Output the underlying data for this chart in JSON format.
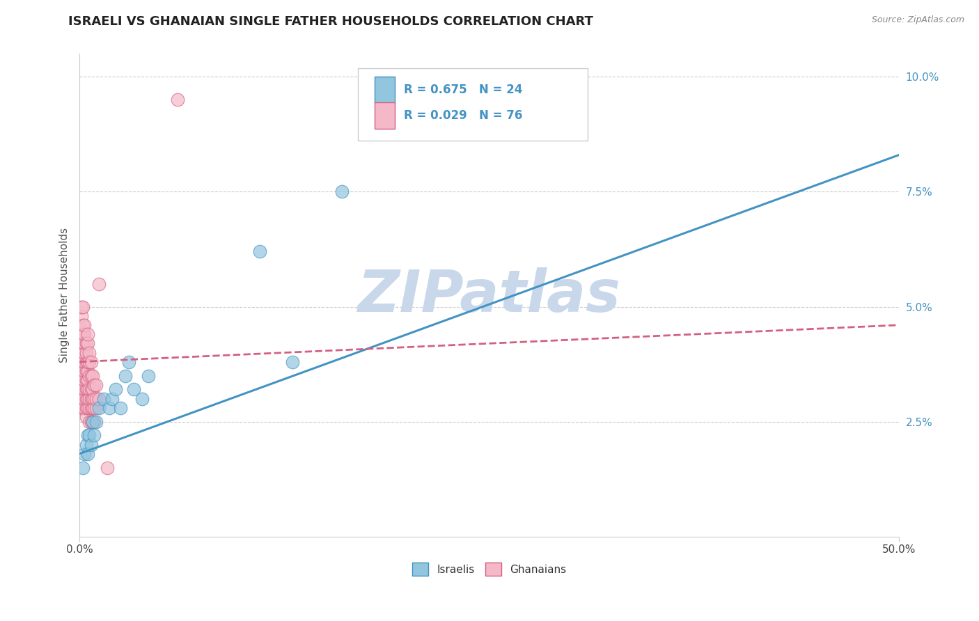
{
  "title": "ISRAELI VS GHANAIAN SINGLE FATHER HOUSEHOLDS CORRELATION CHART",
  "source": "Source: ZipAtlas.com",
  "ylabel": "Single Father Households",
  "xlim": [
    0.0,
    0.5
  ],
  "ylim": [
    0.0,
    0.105
  ],
  "xticks": [
    0.0,
    0.5
  ],
  "xticklabels": [
    "0.0%",
    "50.0%"
  ],
  "yticks": [
    0.025,
    0.05,
    0.075,
    0.1
  ],
  "yticklabels": [
    "2.5%",
    "5.0%",
    "7.5%",
    "10.0%"
  ],
  "israeli_color": "#92c5de",
  "ghanaian_color": "#f4b8c8",
  "israeli_line_color": "#4393c3",
  "ghanaian_line_color": "#d46080",
  "legend_label_israeli": "Israelis",
  "legend_label_ghanaian": "Ghanaians",
  "watermark": "ZIPatlas",
  "watermark_color": "#c8d8ea",
  "grid_color": "#cccccc",
  "background_color": "#ffffff",
  "israeli_x": [
    0.002,
    0.003,
    0.004,
    0.005,
    0.005,
    0.006,
    0.007,
    0.008,
    0.009,
    0.01,
    0.012,
    0.015,
    0.018,
    0.02,
    0.022,
    0.025,
    0.028,
    0.03,
    0.033,
    0.038,
    0.042,
    0.11,
    0.13,
    0.16
  ],
  "israeli_y": [
    0.015,
    0.018,
    0.02,
    0.022,
    0.018,
    0.022,
    0.02,
    0.025,
    0.022,
    0.025,
    0.028,
    0.03,
    0.028,
    0.03,
    0.032,
    0.028,
    0.035,
    0.038,
    0.032,
    0.03,
    0.035,
    0.062,
    0.038,
    0.075
  ],
  "ghanaian_x": [
    0.001,
    0.001,
    0.001,
    0.001,
    0.001,
    0.001,
    0.001,
    0.001,
    0.001,
    0.001,
    0.002,
    0.002,
    0.002,
    0.002,
    0.002,
    0.002,
    0.002,
    0.002,
    0.002,
    0.002,
    0.003,
    0.003,
    0.003,
    0.003,
    0.003,
    0.003,
    0.003,
    0.003,
    0.003,
    0.003,
    0.004,
    0.004,
    0.004,
    0.004,
    0.004,
    0.004,
    0.004,
    0.004,
    0.004,
    0.005,
    0.005,
    0.005,
    0.005,
    0.005,
    0.005,
    0.005,
    0.005,
    0.006,
    0.006,
    0.006,
    0.006,
    0.006,
    0.006,
    0.006,
    0.007,
    0.007,
    0.007,
    0.007,
    0.007,
    0.007,
    0.008,
    0.008,
    0.008,
    0.008,
    0.008,
    0.009,
    0.009,
    0.009,
    0.009,
    0.01,
    0.01,
    0.01,
    0.012,
    0.012,
    0.017,
    0.06
  ],
  "ghanaian_y": [
    0.028,
    0.03,
    0.032,
    0.035,
    0.038,
    0.04,
    0.043,
    0.045,
    0.048,
    0.05,
    0.028,
    0.03,
    0.033,
    0.035,
    0.038,
    0.04,
    0.042,
    0.044,
    0.046,
    0.05,
    0.028,
    0.03,
    0.032,
    0.034,
    0.036,
    0.038,
    0.04,
    0.042,
    0.044,
    0.046,
    0.026,
    0.028,
    0.03,
    0.032,
    0.034,
    0.036,
    0.038,
    0.04,
    0.042,
    0.028,
    0.03,
    0.032,
    0.034,
    0.036,
    0.038,
    0.042,
    0.044,
    0.025,
    0.028,
    0.03,
    0.032,
    0.035,
    0.038,
    0.04,
    0.025,
    0.028,
    0.03,
    0.032,
    0.035,
    0.038,
    0.025,
    0.028,
    0.03,
    0.032,
    0.035,
    0.025,
    0.028,
    0.03,
    0.033,
    0.028,
    0.03,
    0.033,
    0.03,
    0.055,
    0.015,
    0.095
  ],
  "isr_line_x0": 0.0,
  "isr_line_y0": 0.018,
  "isr_line_x1": 0.5,
  "isr_line_y1": 0.083,
  "gha_line_x0": 0.0,
  "gha_line_y0": 0.038,
  "gha_line_x1": 0.5,
  "gha_line_y1": 0.046,
  "title_fontsize": 13,
  "axis_label_fontsize": 11,
  "tick_fontsize": 11,
  "legend_fontsize": 12
}
